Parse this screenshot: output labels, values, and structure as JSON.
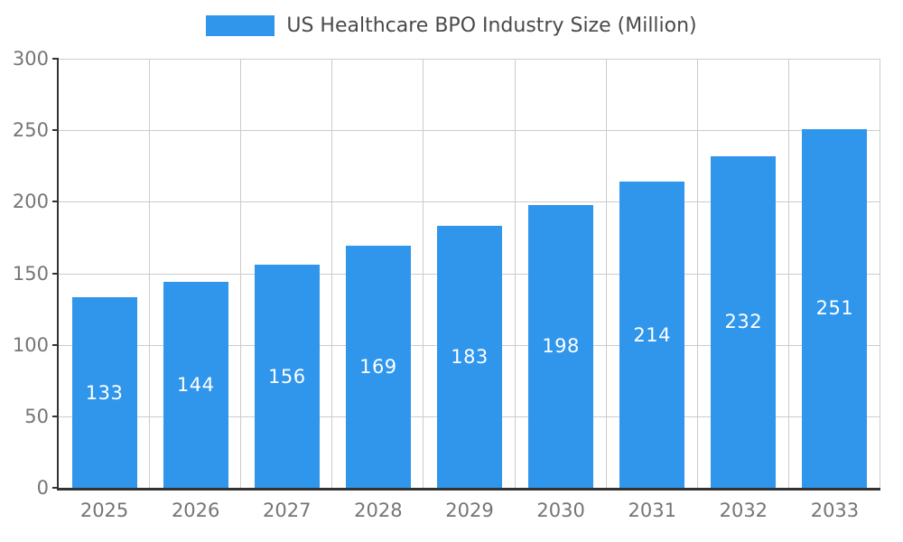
{
  "chart_data": {
    "type": "bar",
    "title": "US Healthcare BPO Industry Size (Million)",
    "categories": [
      "2025",
      "2026",
      "2027",
      "2028",
      "2029",
      "2030",
      "2031",
      "2032",
      "2033"
    ],
    "values": [
      133,
      144,
      156,
      169,
      183,
      198,
      214,
      232,
      251
    ],
    "xlabel": "",
    "ylabel": "",
    "ylim": [
      0,
      300
    ],
    "yticks": [
      0,
      50,
      100,
      150,
      200,
      250,
      300
    ],
    "grid": true,
    "legend_position": "top",
    "bar_color": "#3096EC",
    "value_label_color": "#FFFFFF",
    "axis_label_color": "#757575",
    "grid_color": "#CCCCCC",
    "axis_line_color": "#333333"
  }
}
